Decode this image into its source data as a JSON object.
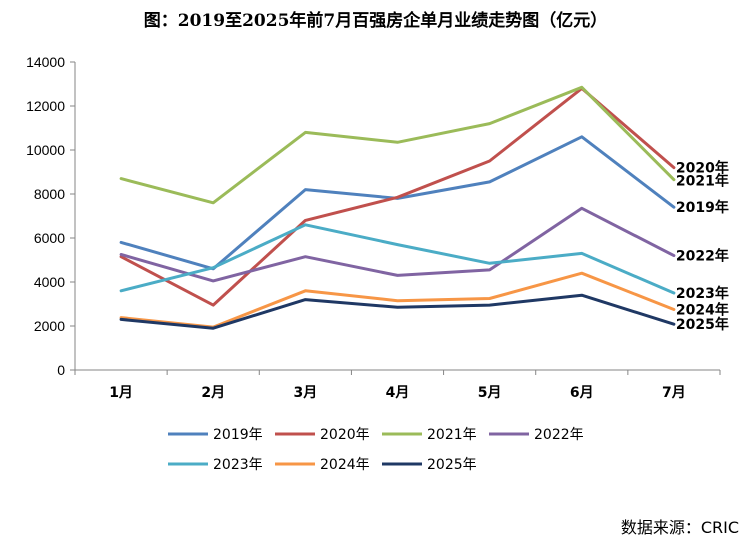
{
  "chart_data": {
    "type": "line",
    "title": "图：2019至2025年前7月百强房企单月业绩走势图（亿元）",
    "source": "数据来源：CRIC",
    "categories": [
      "1月",
      "2月",
      "3月",
      "4月",
      "5月",
      "6月",
      "7月"
    ],
    "ylim": [
      0,
      14000
    ],
    "yticks": [
      0,
      2000,
      4000,
      6000,
      8000,
      10000,
      12000,
      14000
    ],
    "xlabel": "",
    "ylabel": "",
    "grid": false,
    "legend": "bottom",
    "series": [
      {
        "name": "2019年",
        "color": "#4f81bd",
        "values": [
          5800,
          4600,
          8200,
          7800,
          8550,
          10600,
          7400
        ]
      },
      {
        "name": "2020年",
        "color": "#c0504d",
        "values": [
          5150,
          2950,
          6800,
          7850,
          9500,
          12800,
          9200
        ]
      },
      {
        "name": "2021年",
        "color": "#9bbb59",
        "values": [
          8700,
          7600,
          10800,
          10350,
          11200,
          12850,
          8650
        ]
      },
      {
        "name": "2022年",
        "color": "#8064a2",
        "values": [
          5250,
          4050,
          5150,
          4300,
          4550,
          7350,
          5200
        ]
      },
      {
        "name": "2023年",
        "color": "#4bacc6",
        "values": [
          3600,
          4650,
          6600,
          5700,
          4850,
          5300,
          3500
        ]
      },
      {
        "name": "2024年",
        "color": "#f79646",
        "values": [
          2380,
          1950,
          3600,
          3150,
          3250,
          4400,
          2750
        ]
      },
      {
        "name": "2025年",
        "color": "#1f3864",
        "values": [
          2300,
          1900,
          3200,
          2850,
          2950,
          3400,
          2080
        ]
      }
    ]
  }
}
